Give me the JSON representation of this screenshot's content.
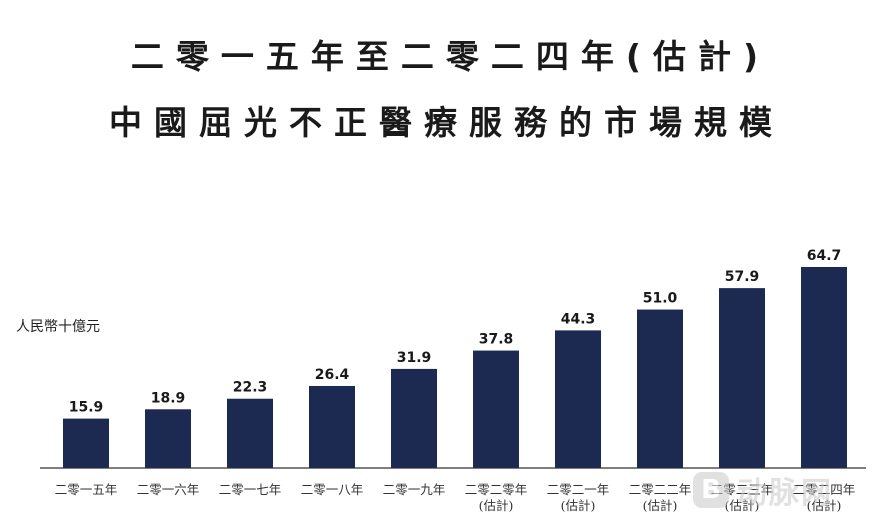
{
  "chart_data": {
    "type": "bar",
    "title": "二零一五年至二零二四年(估計)",
    "subtitle": "中國屈光不正醫療服務的市場規模",
    "ylabel": "人民幣十億元",
    "xlabel": "",
    "ylim": [
      0,
      70
    ],
    "grid": false,
    "legend": "none",
    "categories": [
      [
        "二零一五年"
      ],
      [
        "二零一六年"
      ],
      [
        "二零一七年"
      ],
      [
        "二零一八年"
      ],
      [
        "二零一九年"
      ],
      [
        "二零二零年",
        "(估計)"
      ],
      [
        "二零二一年",
        "(估計)"
      ],
      [
        "二零二二年",
        "(估計)"
      ],
      [
        "二零二三年",
        "(估計)"
      ],
      [
        "二零二四年",
        "(估計)"
      ]
    ],
    "values": [
      15.9,
      18.9,
      22.3,
      26.4,
      31.9,
      37.8,
      44.3,
      51.0,
      57.9,
      64.7
    ],
    "value_labels": [
      "15.9",
      "18.9",
      "22.3",
      "26.4",
      "31.9",
      "37.8",
      "44.3",
      "51.0",
      "57.9",
      "64.7"
    ],
    "bar_color": "#1c2a52",
    "axis_color": "#333333"
  },
  "watermark": {
    "logo_letter": "B",
    "text": "动脉网"
  }
}
